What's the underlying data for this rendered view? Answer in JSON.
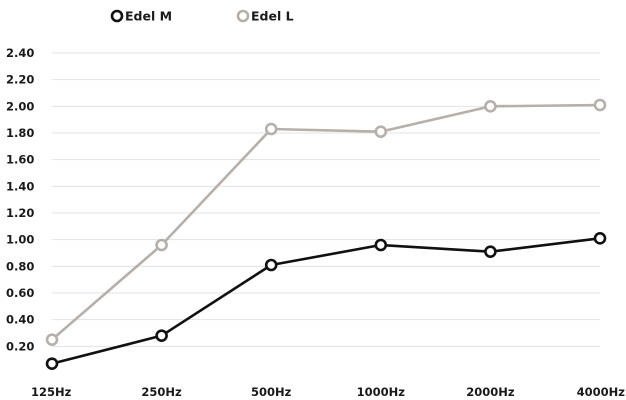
{
  "chart_data": {
    "type": "line",
    "title": "",
    "xlabel": "",
    "ylabel": "",
    "categories": [
      "125Hz",
      "250Hz",
      "500Hz",
      "1000Hz",
      "2000Hz",
      "4000Hz"
    ],
    "y_tick_labels": [
      "0.20",
      "0.40",
      "0.60",
      "0.80",
      "1.00",
      "1.20",
      "1.40",
      "1.60",
      "1.80",
      "2.00",
      "2.20",
      "2.40"
    ],
    "y_ticks": [
      0.2,
      0.4,
      0.6,
      0.8,
      1.0,
      1.2,
      1.4,
      1.6,
      1.8,
      2.0,
      2.2,
      2.4
    ],
    "ylim": [
      0.0,
      2.4
    ],
    "grid": true,
    "legend_position": "top-left",
    "series": [
      {
        "name": "Edel M",
        "color": "#111111",
        "values": [
          0.07,
          0.28,
          0.81,
          0.96,
          0.91,
          1.01
        ]
      },
      {
        "name": "Edel L",
        "color": "#b7b0aa",
        "values": [
          0.25,
          0.96,
          1.83,
          1.81,
          2.0,
          2.01
        ]
      }
    ]
  }
}
